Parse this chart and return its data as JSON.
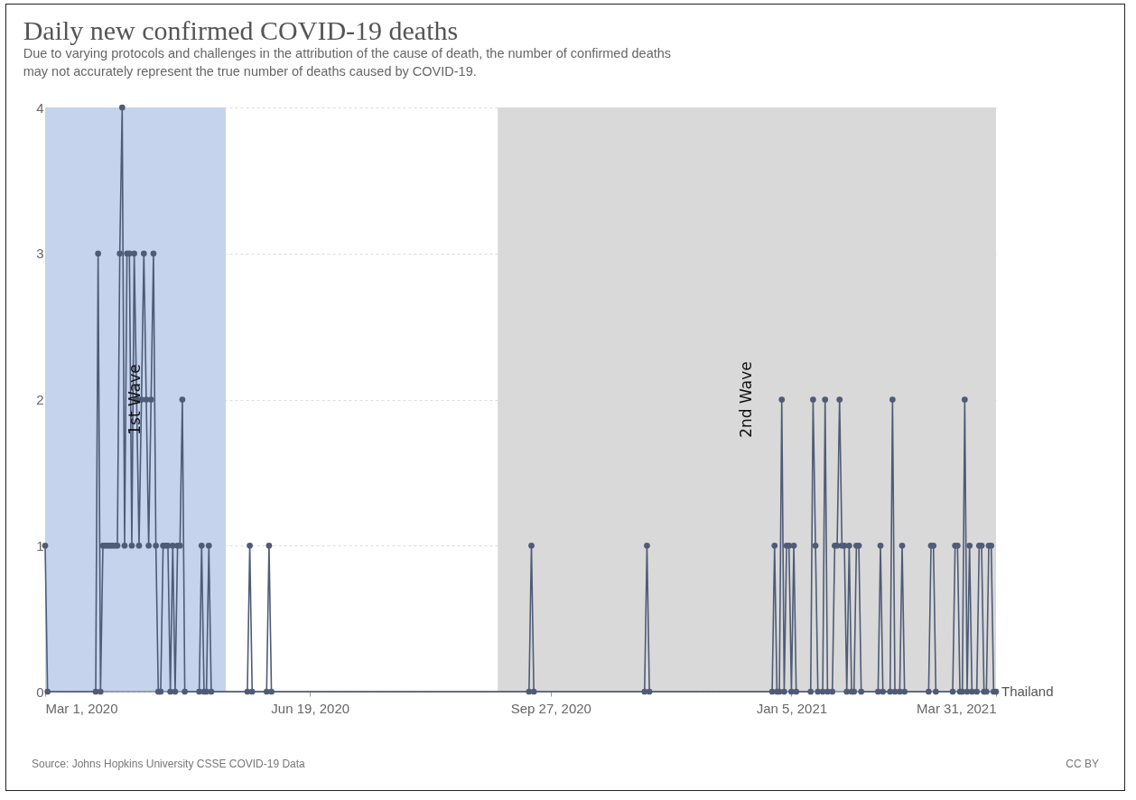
{
  "chart_data": {
    "type": "line",
    "title": "Daily new confirmed COVID-19 deaths",
    "subtitle": "Due to varying protocols and challenges in the attribution of the cause of death, the number of confirmed deaths may not accurately represent the true number of deaths caused by COVID-19.",
    "annotations": [
      "Source: Johns Hopkins University CSSE COVID-19 Data",
      "CC BY"
    ],
    "x": [
      "2020-03-01",
      "2020-03-02",
      "2020-03-22",
      "2020-03-23",
      "2020-03-24",
      "2020-03-25",
      "2020-03-26",
      "2020-03-27",
      "2020-03-28",
      "2020-03-29",
      "2020-03-30",
      "2020-03-31",
      "2020-04-01",
      "2020-04-02",
      "2020-04-03",
      "2020-04-04",
      "2020-04-05",
      "2020-04-06",
      "2020-04-07",
      "2020-04-08",
      "2020-04-09",
      "2020-04-10",
      "2020-04-11",
      "2020-04-12",
      "2020-04-13",
      "2020-04-14",
      "2020-04-15",
      "2020-04-16",
      "2020-04-17",
      "2020-04-18",
      "2020-04-19",
      "2020-04-20",
      "2020-04-21",
      "2020-04-22",
      "2020-04-23",
      "2020-04-24",
      "2020-04-25",
      "2020-04-26",
      "2020-04-27",
      "2020-04-28",
      "2020-05-04",
      "2020-05-05",
      "2020-05-06",
      "2020-05-07",
      "2020-05-08",
      "2020-05-09",
      "2020-05-24",
      "2020-05-25",
      "2020-05-26",
      "2020-06-01",
      "2020-06-02",
      "2020-06-03",
      "2020-09-18",
      "2020-09-19",
      "2020-09-20",
      "2020-11-05",
      "2020-11-06",
      "2020-11-07",
      "2020-12-28",
      "2020-12-29",
      "2020-12-30",
      "2020-12-31",
      "2021-01-01",
      "2021-01-02",
      "2021-01-03",
      "2021-01-04",
      "2021-01-05",
      "2021-01-06",
      "2021-01-07",
      "2021-01-13",
      "2021-01-14",
      "2021-01-15",
      "2021-01-16",
      "2021-01-18",
      "2021-01-19",
      "2021-01-20",
      "2021-01-22",
      "2021-01-23",
      "2021-01-24",
      "2021-01-25",
      "2021-01-26",
      "2021-01-27",
      "2021-01-28",
      "2021-01-29",
      "2021-01-30",
      "2021-01-31",
      "2021-02-01",
      "2021-02-02",
      "2021-02-03",
      "2021-02-10",
      "2021-02-11",
      "2021-02-12",
      "2021-02-15",
      "2021-02-16",
      "2021-02-17",
      "2021-02-19",
      "2021-02-20",
      "2021-02-21",
      "2021-03-03",
      "2021-03-04",
      "2021-03-05",
      "2021-03-06",
      "2021-03-13",
      "2021-03-14",
      "2021-03-15",
      "2021-03-16",
      "2021-03-17",
      "2021-03-18",
      "2021-03-19",
      "2021-03-20",
      "2021-03-21",
      "2021-03-23",
      "2021-03-24",
      "2021-03-25",
      "2021-03-26",
      "2021-03-27",
      "2021-03-28",
      "2021-03-29",
      "2021-03-30",
      "2021-03-31"
    ],
    "series": [
      {
        "name": "Thailand",
        "color": "#4f5b77",
        "values": [
          1,
          0,
          0,
          3,
          0,
          1,
          1,
          1,
          1,
          1,
          1,
          1,
          3,
          4,
          1,
          3,
          3,
          1,
          3,
          2,
          1,
          2,
          3,
          2,
          1,
          2,
          3,
          1,
          0,
          0,
          1,
          1,
          1,
          0,
          1,
          0,
          1,
          1,
          2,
          0,
          0,
          1,
          0,
          0,
          1,
          0,
          0,
          1,
          0,
          0,
          1,
          0,
          0,
          1,
          0,
          0,
          1,
          0,
          0,
          1,
          0,
          0,
          2,
          0,
          1,
          1,
          0,
          1,
          0,
          0,
          2,
          1,
          0,
          0,
          2,
          0,
          0,
          1,
          1,
          2,
          1,
          1,
          0,
          1,
          0,
          0,
          1,
          1,
          0,
          0,
          1,
          0,
          0,
          2,
          0,
          0,
          1,
          0,
          0,
          1,
          1,
          0,
          0,
          1,
          1,
          0,
          0,
          2,
          0,
          1,
          0,
          0,
          1,
          1,
          0,
          0,
          1,
          1,
          0,
          0
        ]
      }
    ],
    "xlim": [
      "2020-03-01",
      "2021-03-31"
    ],
    "xticks": [
      {
        "value": "2020-03-01",
        "label": "Mar 1, 2020"
      },
      {
        "value": "2020-06-19",
        "label": "Jun 19, 2020"
      },
      {
        "value": "2020-09-27",
        "label": "Sep 27, 2020"
      },
      {
        "value": "2021-01-05",
        "label": "Jan 5, 2021"
      },
      {
        "value": "2021-03-31",
        "label": "Mar 31, 2021"
      }
    ],
    "ylim": [
      0,
      4
    ],
    "yticks": [
      0,
      1,
      2,
      3,
      4
    ],
    "bands": [
      {
        "axis": "x",
        "from": "2020-03-01",
        "to": "2020-05-15",
        "label": "1st Wave",
        "color": "#c5d3ec"
      },
      {
        "axis": "x",
        "from": "2020-09-05",
        "to": "2021-03-31",
        "label": "2nd Wave",
        "color": "#d9d9d9"
      }
    ],
    "grid": "y",
    "marker": "circle",
    "line_style": "solid"
  }
}
